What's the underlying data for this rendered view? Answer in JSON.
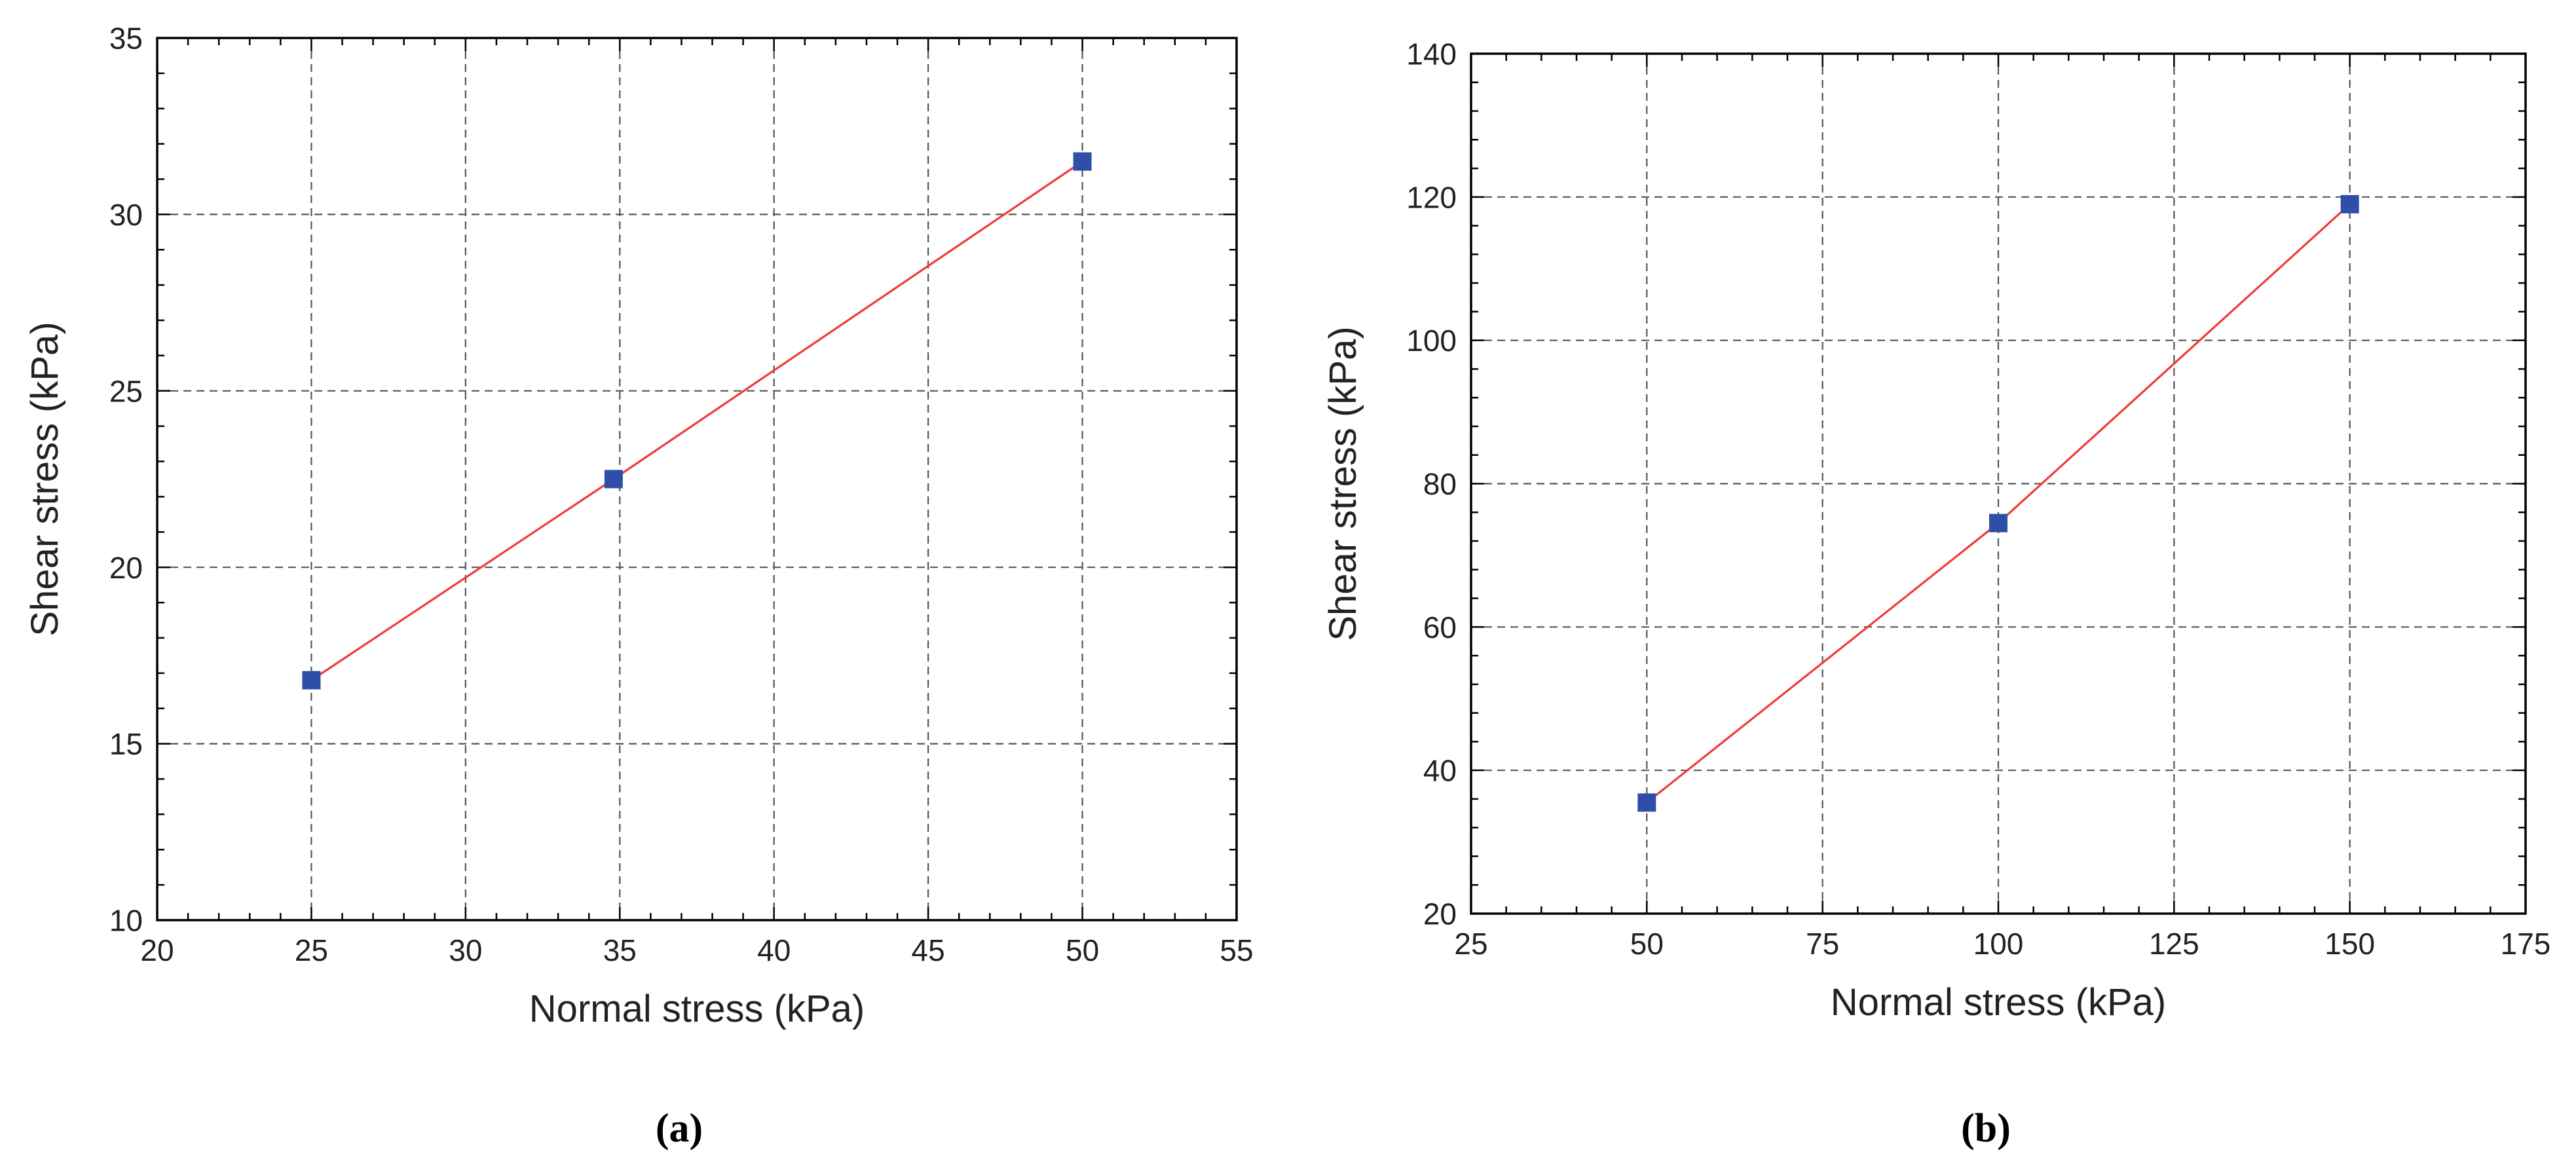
{
  "chart_data": [
    {
      "type": "line",
      "panel_label": "(a)",
      "xlabel": "Normal stress (kPa)",
      "ylabel": "Shear stress (kPa)",
      "xlim": [
        20,
        55
      ],
      "ylim": [
        10,
        35
      ],
      "xticks": [
        20,
        25,
        30,
        35,
        40,
        45,
        50,
        55
      ],
      "yticks": [
        10,
        15,
        20,
        25,
        30,
        35
      ],
      "grid": true,
      "series": [
        {
          "x": [
            25,
            34.8,
            50
          ],
          "y": [
            16.8,
            22.5,
            31.5
          ],
          "marker": "square",
          "marker_color": "#2e4fa8",
          "line_color": "#f03a3a"
        }
      ]
    },
    {
      "type": "line",
      "panel_label": "(b)",
      "xlabel": "Normal stress (kPa)",
      "ylabel": "Shear stress (kPa)",
      "xlim": [
        25,
        175
      ],
      "ylim": [
        20,
        140
      ],
      "xticks": [
        25,
        50,
        75,
        100,
        125,
        150,
        175
      ],
      "yticks": [
        20,
        40,
        60,
        80,
        100,
        120,
        140
      ],
      "grid": true,
      "series": [
        {
          "x": [
            50,
            100,
            150
          ],
          "y": [
            35.5,
            74.5,
            119
          ],
          "marker": "square",
          "marker_color": "#2e4fa8",
          "line_color": "#f03a3a"
        }
      ]
    }
  ]
}
